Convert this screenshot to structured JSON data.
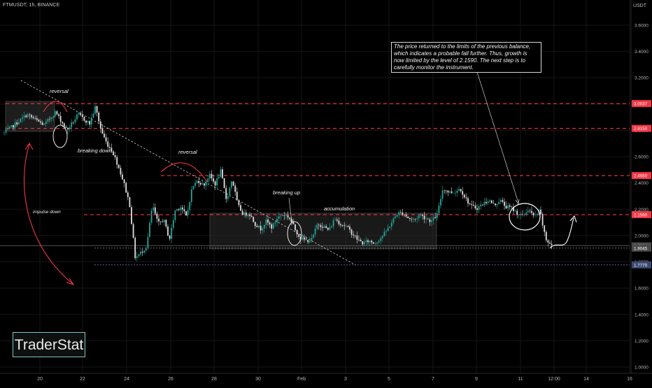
{
  "header": {
    "symbol": "FTMUSDT, 1h, BINANCE",
    "currency": "USDT"
  },
  "logo": {
    "text": "TraderStat"
  },
  "note": "The price returned to the limits of the previous balance, which indicates a probable fall further. Thus, growth is now limited by the level of 2.1590. The next step is to carefully monitor the instrument.",
  "chart_data": {
    "type": "candlestick",
    "xlabels": [
      "20",
      "22",
      "24",
      "26",
      "28",
      "30",
      "Feb",
      "3",
      "5",
      "7",
      "9",
      "11",
      "12:00",
      "14",
      "16"
    ],
    "yticks": [
      "3.6000",
      "3.4000",
      "3.2000",
      "3.0000",
      "2.8000",
      "2.6000",
      "2.4000",
      "2.2000",
      "2.0000",
      "1.8000",
      "1.6000",
      "1.4000",
      "1.2000",
      "1.0000"
    ],
    "ylim": [
      1.0,
      3.6
    ],
    "levels": [
      {
        "value": 3.0037,
        "label": "3.0037",
        "style": "dashed",
        "color": "#f23645"
      },
      {
        "value": 2.815,
        "label": "2.8150",
        "style": "dashed",
        "color": "#f23645"
      },
      {
        "value": 2.456,
        "label": "2.4560",
        "style": "dashed",
        "color": "#f23645"
      },
      {
        "value": 2.159,
        "label": "2.1590",
        "style": "dashed",
        "color": "#f23645"
      },
      {
        "value": 1.9214,
        "label": "1.9214",
        "style": "solid",
        "color": "#7a7a7a"
      },
      {
        "value": 1.9045,
        "label": "1.9045",
        "style": "dotted",
        "color": "#8a8a8a"
      },
      {
        "value": 1.777,
        "label": "1.7770",
        "style": "dotted",
        "color": "#7b86c8"
      }
    ],
    "annotations": [
      "reversal",
      "breaking down",
      "impulse down",
      "reversal",
      "breaking up",
      "accumulation"
    ],
    "price_path": [
      [
        0,
        2.78
      ],
      [
        4,
        2.92
      ],
      [
        7,
        2.84
      ],
      [
        9,
        2.94
      ],
      [
        11,
        2.8
      ],
      [
        13,
        2.92
      ],
      [
        15,
        2.85
      ],
      [
        16,
        2.98
      ],
      [
        17,
        2.8
      ],
      [
        18,
        2.7
      ],
      [
        19,
        2.64
      ],
      [
        20,
        2.53
      ],
      [
        21,
        2.4
      ],
      [
        22,
        2.24
      ],
      [
        23,
        1.83
      ],
      [
        24,
        1.87
      ],
      [
        25,
        1.92
      ],
      [
        26,
        2.23
      ],
      [
        27,
        2.09
      ],
      [
        28,
        2.12
      ],
      [
        29,
        1.97
      ],
      [
        30,
        2.19
      ],
      [
        31,
        2.22
      ],
      [
        32,
        2.14
      ],
      [
        33,
        2.37
      ],
      [
        34,
        2.42
      ],
      [
        35,
        2.38
      ],
      [
        36,
        2.46
      ],
      [
        37,
        2.39
      ],
      [
        38,
        2.49
      ],
      [
        39,
        2.27
      ],
      [
        40,
        2.43
      ],
      [
        41,
        2.23
      ],
      [
        42,
        2.16
      ],
      [
        43,
        2.17
      ],
      [
        44,
        2.09
      ],
      [
        45,
        2.05
      ],
      [
        46,
        2.11
      ],
      [
        47,
        2.06
      ],
      [
        48,
        2.14
      ],
      [
        49,
        2.16
      ],
      [
        50,
        2.14
      ],
      [
        51,
        2.05
      ],
      [
        52,
        1.98
      ],
      [
        53,
        1.96
      ],
      [
        54,
        1.97
      ],
      [
        55,
        2.09
      ],
      [
        56,
        2.07
      ],
      [
        57,
        2.04
      ],
      [
        58,
        2.13
      ],
      [
        59,
        2.09
      ],
      [
        60,
        2.07
      ],
      [
        61,
        2.02
      ],
      [
        62,
        1.97
      ],
      [
        63,
        1.94
      ],
      [
        64,
        1.96
      ],
      [
        65,
        1.94
      ],
      [
        66,
        1.98
      ],
      [
        67,
        2.03
      ],
      [
        68,
        2.1
      ],
      [
        69,
        2.17
      ],
      [
        70,
        2.17
      ],
      [
        71,
        2.13
      ],
      [
        72,
        2.12
      ],
      [
        73,
        2.16
      ],
      [
        74,
        2.13
      ],
      [
        75,
        2.11
      ],
      [
        76,
        2.16
      ],
      [
        77,
        2.36
      ],
      [
        78,
        2.33
      ],
      [
        79,
        2.33
      ],
      [
        80,
        2.36
      ],
      [
        81,
        2.28
      ],
      [
        82,
        2.22
      ],
      [
        83,
        2.21
      ],
      [
        84,
        2.24
      ],
      [
        85,
        2.27
      ],
      [
        86,
        2.23
      ],
      [
        87,
        2.27
      ],
      [
        88,
        2.22
      ],
      [
        89,
        2.21
      ],
      [
        90,
        2.17
      ],
      [
        91,
        2.15
      ],
      [
        92,
        2.2
      ],
      [
        93,
        2.14
      ],
      [
        94,
        2.19
      ],
      [
        95,
        1.97
      ],
      [
        96,
        1.93
      ],
      [
        96.5,
        1.92
      ]
    ]
  }
}
